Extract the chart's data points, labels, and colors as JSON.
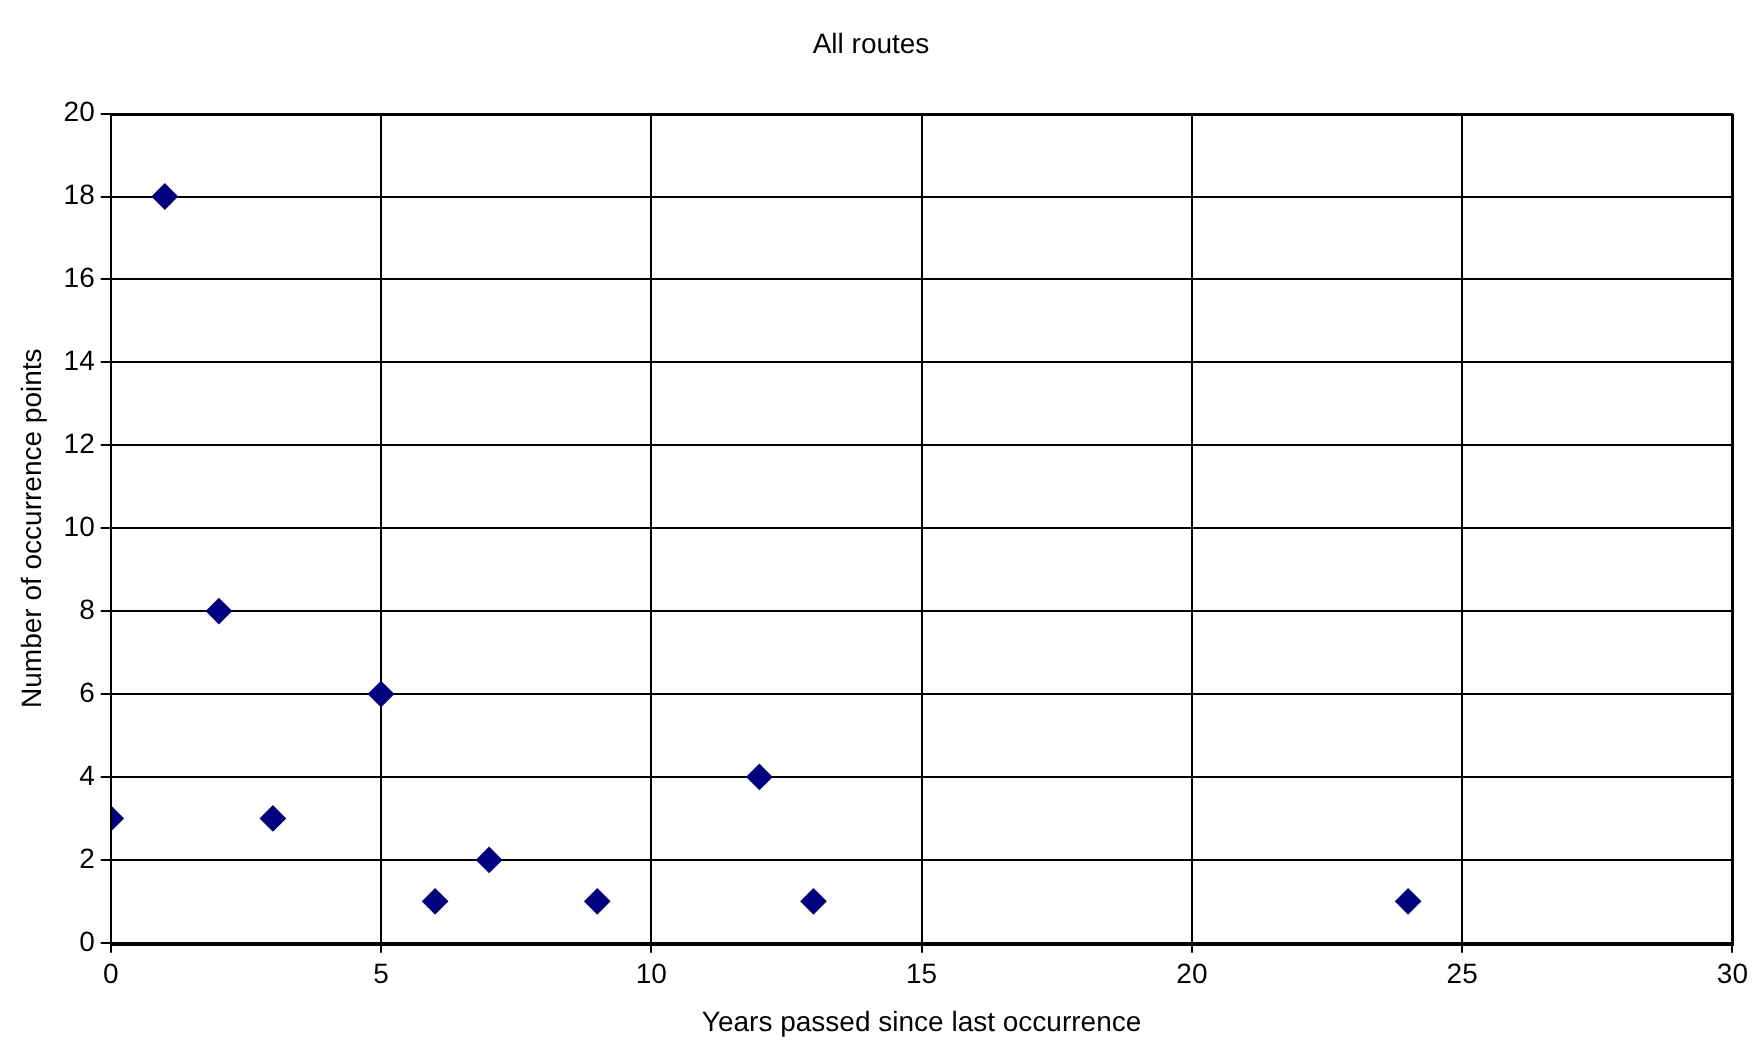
{
  "chart_data": {
    "type": "scatter",
    "title": "All routes",
    "xlabel": "Years passed since last occurrence",
    "ylabel": "Number of occurrence points",
    "x": [
      0,
      1,
      2,
      3,
      5,
      6,
      7,
      9,
      12,
      13,
      24
    ],
    "series": [
      {
        "color": "#000080",
        "values": [
          3,
          18,
          8,
          3,
          6,
          1,
          2,
          1,
          4,
          1,
          1
        ]
      }
    ],
    "xlim": [
      0,
      30
    ],
    "xticks": [
      0,
      5,
      10,
      15,
      20,
      25,
      30
    ],
    "ylim": [
      0,
      20
    ],
    "yticks": [
      0,
      2,
      4,
      6,
      8,
      10,
      12,
      14,
      16,
      18,
      20
    ],
    "grid": true,
    "legend": false,
    "marker": "diamond"
  }
}
